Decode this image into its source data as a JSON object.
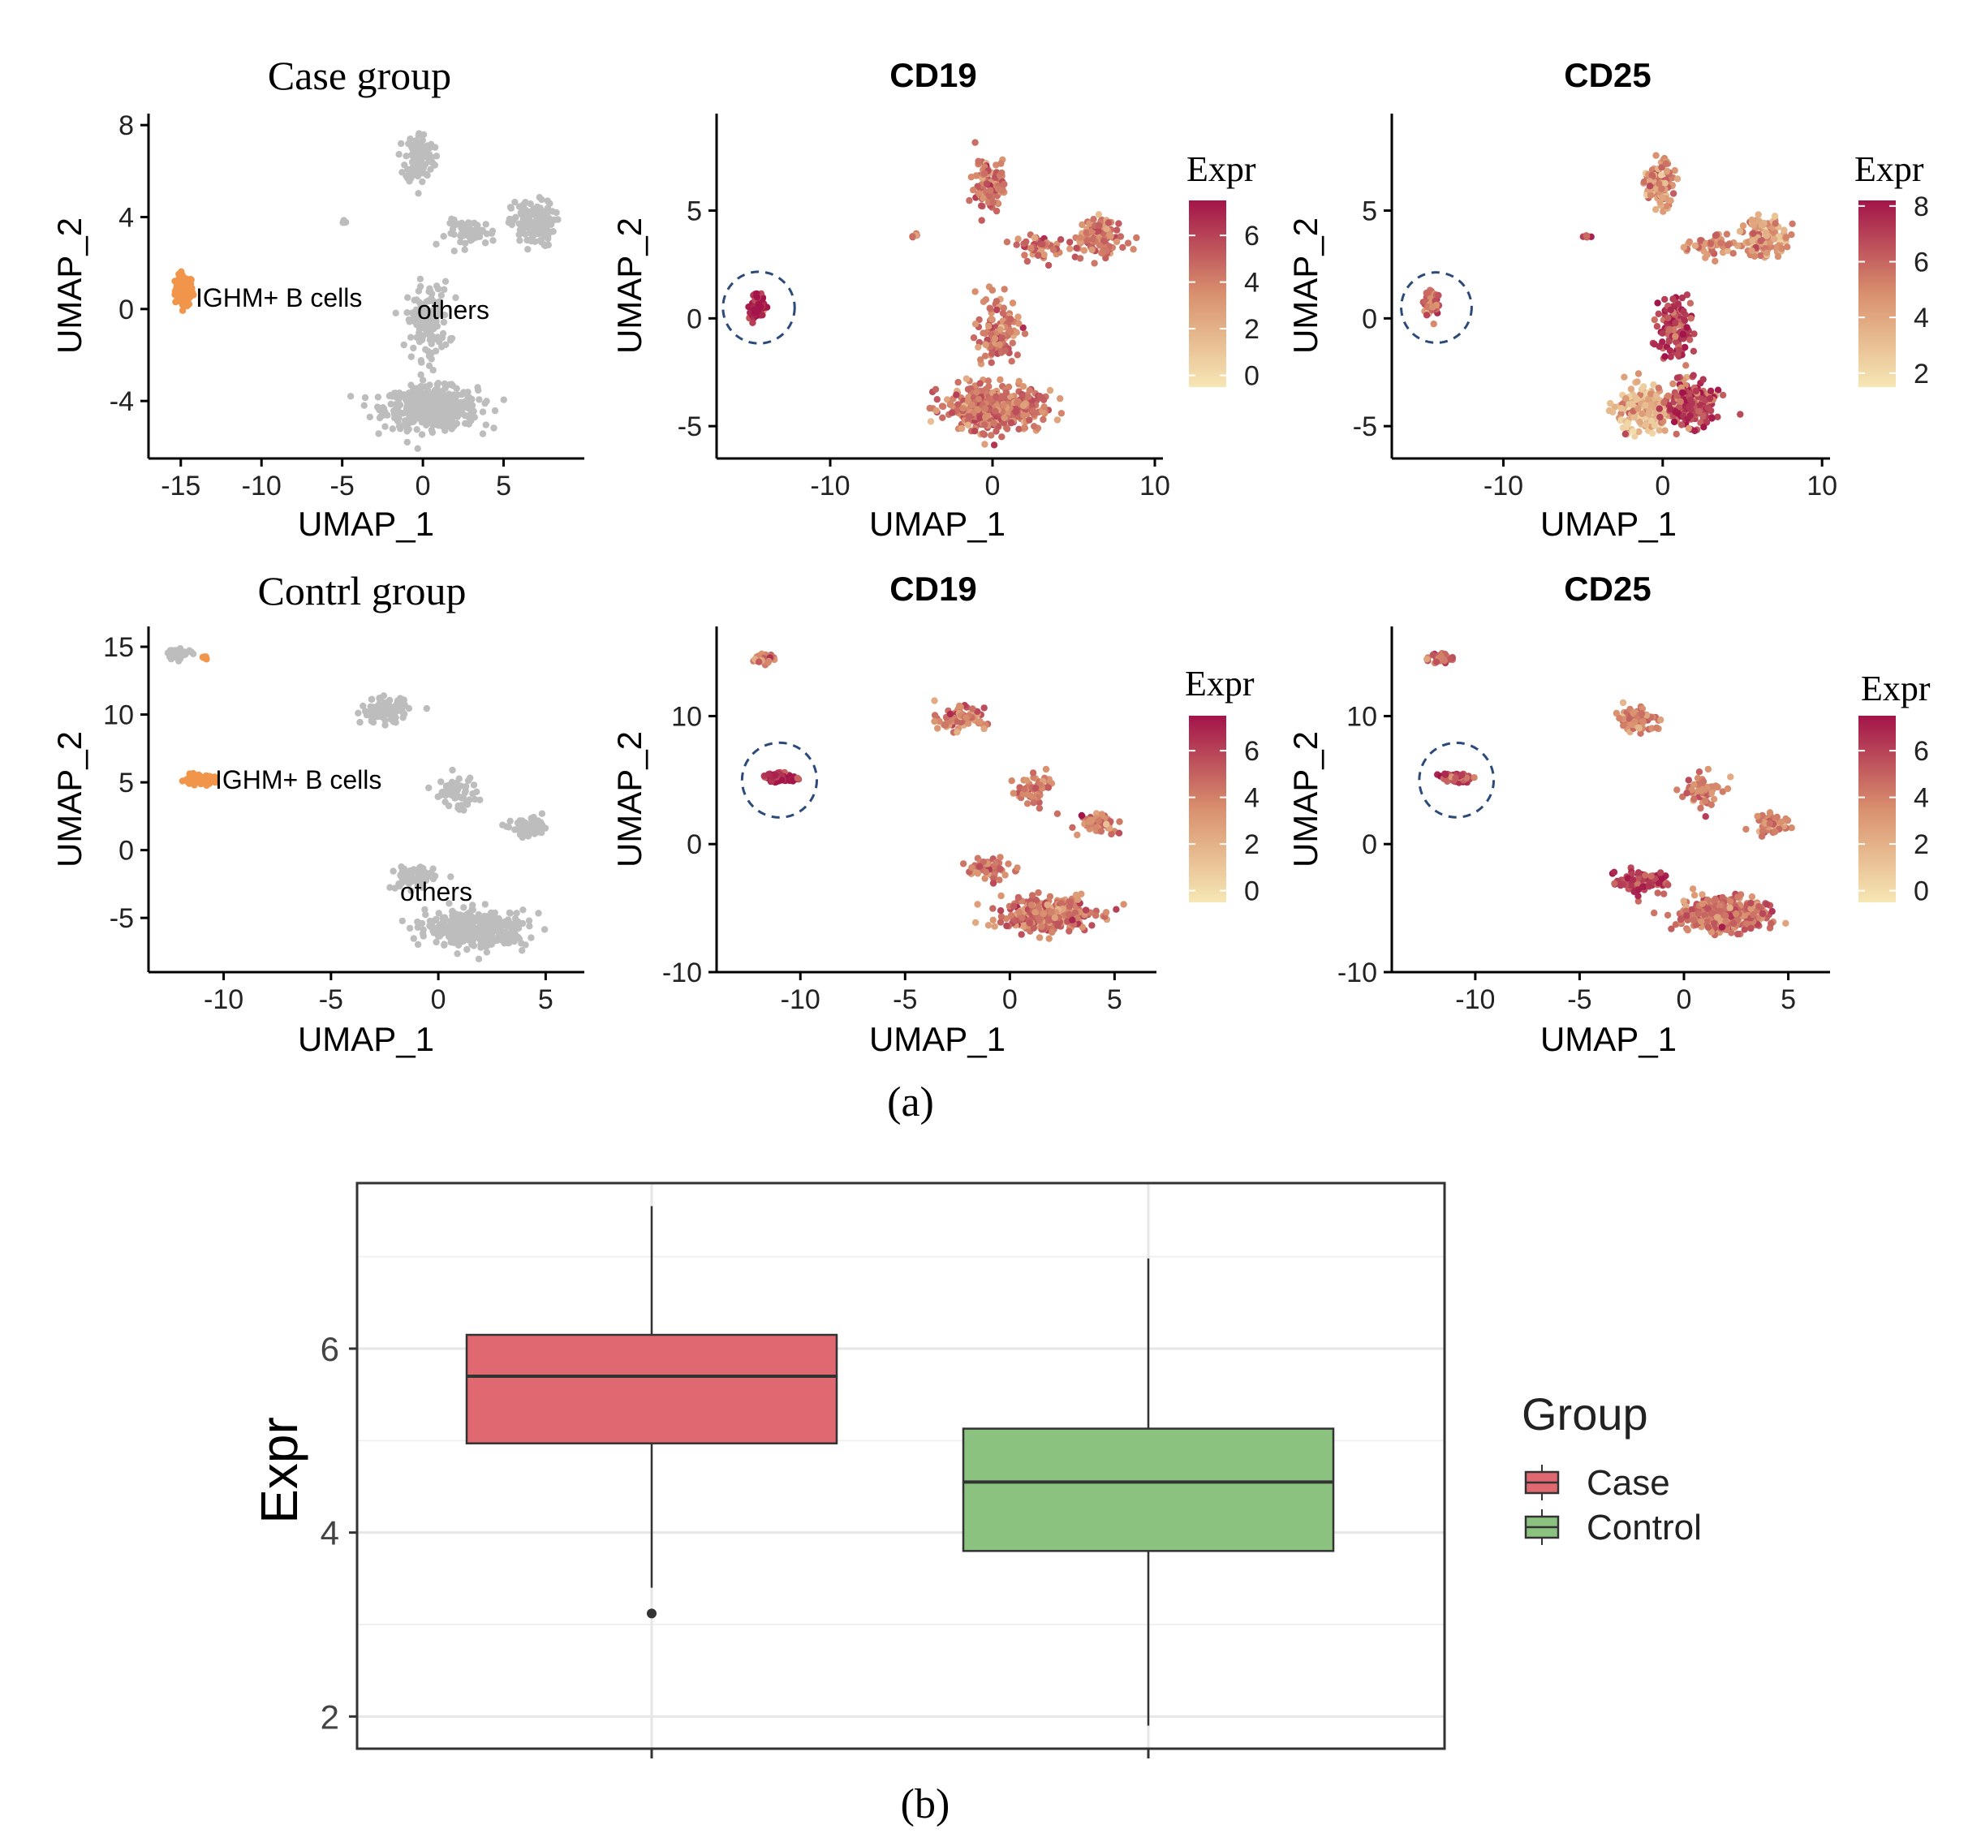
{
  "figure": {
    "caption_a": "(a)",
    "caption_b": "(b)"
  },
  "colors": {
    "grey_cells": "#bdbdbd",
    "ighm_cells": "#f0954a",
    "expr_low": "#f6e7b4",
    "expr_mid": "#d9906e",
    "expr_high": "#a3144a",
    "circle": "#2b4a7a",
    "case_fill": "#e06870",
    "control_fill": "#8bc280",
    "grid": "#e6e6e6"
  },
  "chart_data": [
    {
      "type": "scatter",
      "id": "case-group",
      "title": "Case group",
      "xlabel": "UMAP_1",
      "ylabel": "UMAP_2",
      "xlim": [
        -17,
        10
      ],
      "ylim": [
        -6.5,
        8.5
      ],
      "xticks": [
        -15,
        -10,
        -5,
        0,
        5
      ],
      "yticks": [
        -4,
        0,
        4,
        8
      ],
      "annotations": [
        {
          "text": "IGHM+ B cells",
          "x": -14.5,
          "y": 0.5
        },
        {
          "text": "others",
          "x": 0,
          "y": -0.2
        }
      ],
      "clusters": [
        {
          "label": "IGHM+ B cells",
          "color": "orange",
          "center": [
            -14.8,
            0.8
          ],
          "spread": [
            0.5,
            0.6
          ],
          "n": 120
        },
        {
          "label": "others",
          "color": "grey",
          "center": [
            0.5,
            -4.3
          ],
          "spread": [
            2.6,
            0.8
          ],
          "n": 500
        },
        {
          "label": "others",
          "color": "grey",
          "center": [
            -0.2,
            6.6
          ],
          "spread": [
            0.8,
            1.0
          ],
          "n": 120
        },
        {
          "label": "others",
          "color": "grey",
          "center": [
            6.8,
            3.7
          ],
          "spread": [
            1.2,
            0.9
          ],
          "n": 140
        },
        {
          "label": "others",
          "color": "grey",
          "center": [
            0.3,
            -0.5
          ],
          "spread": [
            1.2,
            1.5
          ],
          "n": 130
        },
        {
          "label": "others",
          "color": "grey",
          "center": [
            3,
            3.3
          ],
          "spread": [
            1.4,
            0.5
          ],
          "n": 60
        },
        {
          "label": "others",
          "color": "grey",
          "center": [
            -4.8,
            3.8
          ],
          "spread": [
            0.2,
            0.1
          ],
          "n": 6
        }
      ]
    },
    {
      "type": "scatter",
      "id": "case-cd19",
      "title": "CD19",
      "xlabel": "UMAP_1",
      "ylabel": "UMAP_2",
      "xlim": [
        -17,
        10.5
      ],
      "ylim": [
        -6.5,
        9.5
      ],
      "xticks": [
        -10,
        0,
        10
      ],
      "yticks": [
        -5,
        0,
        5
      ],
      "legend_title": "Expr",
      "colorbar_ticks": [
        0,
        2,
        4,
        6
      ],
      "colorbar_range": [
        -0.5,
        7.5
      ],
      "highlight_circle": {
        "x": -14.4,
        "y": 0.5,
        "r": 2.6
      },
      "clusters": [
        {
          "center": [
            -14.5,
            0.6
          ],
          "spread": [
            0.4,
            0.5
          ],
          "n": 90,
          "expr": 7.2
        },
        {
          "center": [
            0,
            -4.2
          ],
          "spread": [
            2.6,
            0.9
          ],
          "n": 500,
          "expr": 4.3
        },
        {
          "center": [
            -0.2,
            6.2
          ],
          "spread": [
            0.8,
            1.0
          ],
          "n": 110,
          "expr": 4.3
        },
        {
          "center": [
            6.5,
            3.7
          ],
          "spread": [
            1.2,
            0.9
          ],
          "n": 130,
          "expr": 4.0
        },
        {
          "center": [
            0.3,
            -0.5
          ],
          "spread": [
            1.2,
            1.5
          ],
          "n": 120,
          "expr": 4.3
        },
        {
          "center": [
            3,
            3.3
          ],
          "spread": [
            1.3,
            0.5
          ],
          "n": 55,
          "expr": 4.2
        },
        {
          "center": [
            -4.8,
            3.8
          ],
          "spread": [
            0.2,
            0.1
          ],
          "n": 6,
          "expr": 4.2
        }
      ]
    },
    {
      "type": "scatter",
      "id": "case-cd25",
      "title": "CD25",
      "xlabel": "UMAP_1",
      "ylabel": "UMAP_2",
      "xlim": [
        -17,
        10.5
      ],
      "ylim": [
        -6.5,
        9.5
      ],
      "xticks": [
        -10,
        0,
        10
      ],
      "yticks": [
        -5,
        0,
        5
      ],
      "legend_title": "Expr",
      "colorbar_ticks": [
        2,
        4,
        6,
        8
      ],
      "colorbar_range": [
        1.5,
        8.2
      ],
      "highlight_circle": {
        "x": -14.2,
        "y": 0.5,
        "r": 2.6
      },
      "clusters": [
        {
          "center": [
            -14.5,
            0.6
          ],
          "spread": [
            0.4,
            0.5
          ],
          "n": 80,
          "expr": 6.0
        },
        {
          "center": [
            -1.2,
            -4.2
          ],
          "spread": [
            1.4,
            0.9
          ],
          "n": 260,
          "expr": 3.6
        },
        {
          "center": [
            1.8,
            -4.0
          ],
          "spread": [
            1.3,
            0.9
          ],
          "n": 260,
          "expr": 6.8
        },
        {
          "center": [
            -0.2,
            6.2
          ],
          "spread": [
            0.8,
            1.0
          ],
          "n": 110,
          "expr": 4.8
        },
        {
          "center": [
            6.5,
            3.7
          ],
          "spread": [
            1.2,
            0.9
          ],
          "n": 130,
          "expr": 4.5
        },
        {
          "center": [
            0.8,
            -0.5
          ],
          "spread": [
            1.1,
            1.4
          ],
          "n": 120,
          "expr": 7.0
        },
        {
          "center": [
            3,
            3.3
          ],
          "spread": [
            1.3,
            0.5
          ],
          "n": 55,
          "expr": 5.0
        },
        {
          "center": [
            -4.8,
            3.8
          ],
          "spread": [
            0.2,
            0.1
          ],
          "n": 6,
          "expr": 6.0
        }
      ]
    },
    {
      "type": "scatter",
      "id": "control-group",
      "title": "Contrl group",
      "xlabel": "UMAP_1",
      "ylabel": "UMAP_2",
      "xlim": [
        -13.5,
        6.8
      ],
      "ylim": [
        -9,
        16.5
      ],
      "xticks": [
        -10,
        -5,
        0,
        5
      ],
      "yticks": [
        -5,
        0,
        5,
        10,
        15
      ],
      "annotations": [
        {
          "text": "IGHM+ B cells",
          "x": -10.3,
          "y": 5
        },
        {
          "text": "others",
          "x": 0,
          "y": -3.2
        }
      ],
      "clusters": [
        {
          "label": "IGHM+ B cells",
          "color": "orange",
          "center": [
            -11.2,
            5.2
          ],
          "spread": [
            0.7,
            0.3
          ],
          "n": 90
        },
        {
          "label": "others",
          "color": "grey",
          "center": [
            -12,
            14.5
          ],
          "spread": [
            0.5,
            0.3
          ],
          "n": 40
        },
        {
          "label": "IGHM+ B cells",
          "color": "orange",
          "center": [
            -10.9,
            14.2
          ],
          "spread": [
            0.1,
            0.1
          ],
          "n": 5
        },
        {
          "label": "others",
          "color": "grey",
          "center": [
            1.8,
            -5.8
          ],
          "spread": [
            2.1,
            1.2
          ],
          "n": 380
        },
        {
          "label": "others",
          "color": "grey",
          "center": [
            -2.5,
            10.3
          ],
          "spread": [
            1.0,
            0.8
          ],
          "n": 90
        },
        {
          "label": "others",
          "color": "grey",
          "center": [
            0.8,
            4.2
          ],
          "spread": [
            0.9,
            1.1
          ],
          "n": 60
        },
        {
          "label": "others",
          "color": "grey",
          "center": [
            4.3,
            1.6
          ],
          "spread": [
            0.8,
            0.6
          ],
          "n": 70
        },
        {
          "label": "others",
          "color": "grey",
          "center": [
            -1.2,
            -2.0
          ],
          "spread": [
            0.9,
            0.8
          ],
          "n": 70
        }
      ]
    },
    {
      "type": "scatter",
      "id": "control-cd19",
      "title": "CD19",
      "xlabel": "UMAP_1",
      "ylabel": "UMAP_2",
      "xlim": [
        -14,
        7
      ],
      "ylim": [
        -10,
        17
      ],
      "xticks": [
        -10,
        -5,
        0,
        5
      ],
      "yticks": [
        -10,
        0,
        10
      ],
      "legend_title": "Expr",
      "colorbar_ticks": [
        0,
        2,
        4,
        6
      ],
      "colorbar_range": [
        -0.5,
        7.5
      ],
      "highlight_circle": {
        "x": -11,
        "y": 5,
        "r": 2.1
      },
      "clusters": [
        {
          "center": [
            -11,
            5.2
          ],
          "spread": [
            0.7,
            0.3
          ],
          "n": 80,
          "expr": 7.0
        },
        {
          "center": [
            -11.7,
            14.5
          ],
          "spread": [
            0.5,
            0.3
          ],
          "n": 40,
          "expr": 4.0
        },
        {
          "center": [
            1.8,
            -5.5
          ],
          "spread": [
            2.0,
            1.2
          ],
          "n": 360,
          "expr": 4.3
        },
        {
          "center": [
            -2.3,
            9.8
          ],
          "spread": [
            1.0,
            0.8
          ],
          "n": 85,
          "expr": 4.0
        },
        {
          "center": [
            1.0,
            4.2
          ],
          "spread": [
            0.9,
            1.1
          ],
          "n": 60,
          "expr": 4.2
        },
        {
          "center": [
            4.2,
            1.6
          ],
          "spread": [
            0.8,
            0.6
          ],
          "n": 65,
          "expr": 4.0
        },
        {
          "center": [
            -1.0,
            -2.0
          ],
          "spread": [
            0.9,
            0.8
          ],
          "n": 65,
          "expr": 4.4
        }
      ]
    },
    {
      "type": "scatter",
      "id": "control-cd25",
      "title": "CD25",
      "xlabel": "UMAP_1",
      "ylabel": "UMAP_2",
      "xlim": [
        -14,
        7
      ],
      "ylim": [
        -10,
        17
      ],
      "xticks": [
        -10,
        -5,
        0,
        5
      ],
      "yticks": [
        -10,
        0,
        10
      ],
      "legend_title": "Expr",
      "colorbar_ticks": [
        0,
        2,
        4,
        6
      ],
      "colorbar_range": [
        -0.5,
        7.5
      ],
      "highlight_circle": {
        "x": -10.9,
        "y": 5,
        "r": 2.1
      },
      "clusters": [
        {
          "center": [
            -11,
            5.2
          ],
          "spread": [
            0.7,
            0.3
          ],
          "n": 70,
          "expr": 5.5
        },
        {
          "center": [
            -11.7,
            14.5
          ],
          "spread": [
            0.5,
            0.3
          ],
          "n": 40,
          "expr": 4.8
        },
        {
          "center": [
            1.8,
            -5.5
          ],
          "spread": [
            2.0,
            1.2
          ],
          "n": 360,
          "expr": 4.4
        },
        {
          "center": [
            -2.0,
            -3.0
          ],
          "spread": [
            1.0,
            0.8
          ],
          "n": 90,
          "expr": 6.2
        },
        {
          "center": [
            -2.3,
            9.8
          ],
          "spread": [
            1.0,
            0.8
          ],
          "n": 85,
          "expr": 3.9
        },
        {
          "center": [
            1.0,
            4.2
          ],
          "spread": [
            0.9,
            1.1
          ],
          "n": 60,
          "expr": 4.0
        },
        {
          "center": [
            4.2,
            1.6
          ],
          "spread": [
            0.8,
            0.6
          ],
          "n": 65,
          "expr": 3.6
        }
      ]
    },
    {
      "type": "box",
      "id": "boxplot",
      "title": "",
      "xlabel": "",
      "ylabel": "Expr",
      "ylim": [
        1.65,
        7.8
      ],
      "yticks": [
        2,
        4,
        6
      ],
      "minor_yticks": [
        3,
        5,
        7
      ],
      "legend_title": "Group",
      "series": [
        {
          "name": "Case",
          "whisker_low": 3.4,
          "q1": 4.97,
          "median": 5.7,
          "q3": 6.15,
          "whisker_high": 7.55,
          "outliers": [
            3.12
          ]
        },
        {
          "name": "Control",
          "whisker_low": 1.9,
          "q1": 3.8,
          "median": 4.55,
          "q3": 5.13,
          "whisker_high": 6.98,
          "outliers": []
        }
      ]
    }
  ]
}
